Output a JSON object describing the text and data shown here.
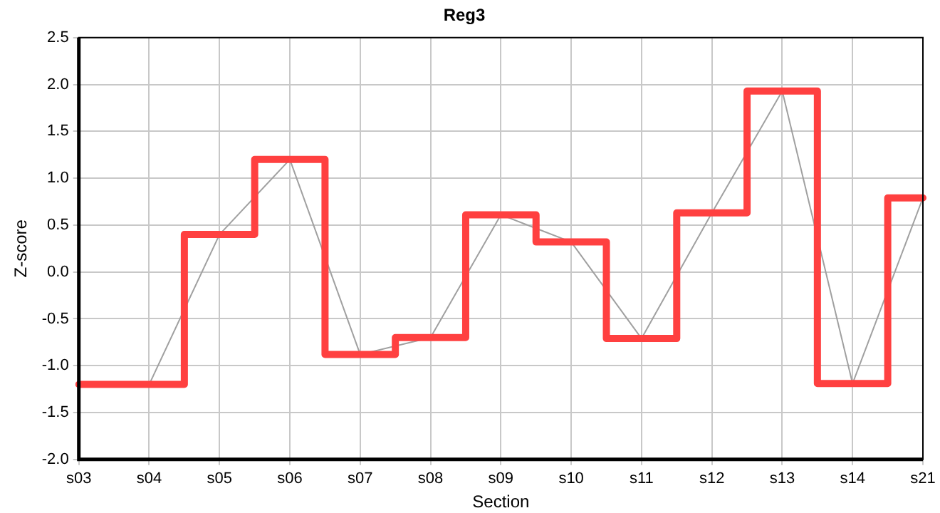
{
  "chart_data": {
    "type": "step",
    "title": "Reg3",
    "xlabel": "Section",
    "ylabel": "Z-score",
    "categories": [
      "s03",
      "s04",
      "s05",
      "s06",
      "s07",
      "s08",
      "s09",
      "s10",
      "s11",
      "s12",
      "s13",
      "s14",
      "s21"
    ],
    "series": [
      {
        "type": "line",
        "color": "#a0a0a0",
        "values": [
          -1.2,
          -1.2,
          0.4,
          1.2,
          -0.88,
          -0.7,
          0.61,
          0.32,
          -0.71,
          0.63,
          1.93,
          -1.19,
          0.79
        ]
      },
      {
        "color": "#ff4040",
        "values": [
          -1.2,
          -1.2,
          0.4,
          1.2,
          -0.88,
          -0.7,
          0.61,
          0.32,
          -0.71,
          0.63,
          1.93,
          -1.19,
          0.79
        ]
      }
    ],
    "ylim": [
      -2,
      2.5
    ],
    "yticks": [
      {
        "value": -2,
        "label": "-2.0"
      },
      {
        "value": -1.5,
        "label": "-1.5"
      },
      {
        "value": -1,
        "label": "-1.0"
      },
      {
        "value": -0.5,
        "label": "-0.5"
      },
      {
        "value": 0,
        "label": "0.0"
      },
      {
        "value": 0.5,
        "label": "0.5"
      },
      {
        "value": 1,
        "label": "1.0"
      },
      {
        "value": 1.5,
        "label": "1.5"
      },
      {
        "value": 2,
        "label": "2.0"
      },
      {
        "value": 2.5,
        "label": "2.5"
      }
    ],
    "grid": true,
    "legend": false,
    "marker": "none"
  }
}
